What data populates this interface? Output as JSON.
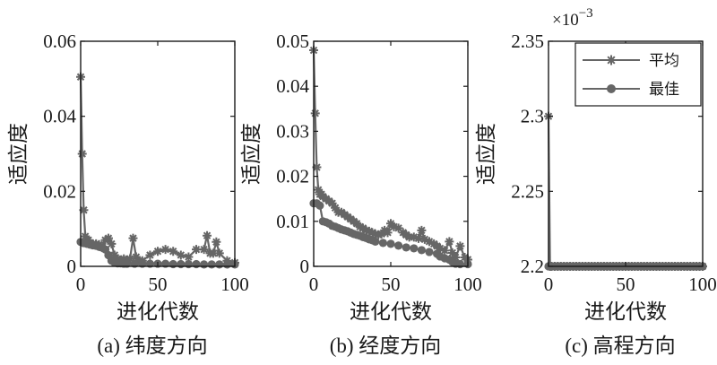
{
  "colors": {
    "axis": "#1a1a1a",
    "series": "#666666",
    "background": "#ffffff"
  },
  "chart_data": [
    {
      "type": "line",
      "caption": "(a) 纬度方向",
      "xlabel": "进化代数",
      "ylabel": "适应度",
      "xlim": [
        0,
        100
      ],
      "ylim": [
        0,
        0.06
      ],
      "xticks": [
        0,
        50,
        100
      ],
      "yticks": [
        0,
        0.02,
        0.04,
        0.06
      ],
      "ytick_labels": [
        "0",
        "0.02",
        "0.04",
        "0.06"
      ],
      "series": [
        {
          "name": "平均",
          "marker": "asterisk",
          "x": [
            0,
            1,
            2,
            3,
            4,
            5,
            6,
            8,
            10,
            12,
            14,
            16,
            18,
            20,
            22,
            24,
            26,
            28,
            30,
            32,
            34,
            36,
            38,
            40,
            45,
            50,
            55,
            60,
            65,
            70,
            75,
            80,
            82,
            84,
            86,
            88,
            90,
            95,
            100
          ],
          "y": [
            0.0505,
            0.03,
            0.015,
            0.008,
            0.007,
            0.007,
            0.006,
            0.006,
            0.006,
            0.0058,
            0.005,
            0.007,
            0.0075,
            0.006,
            0.003,
            0.002,
            0.0015,
            0.002,
            0.0015,
            0.002,
            0.0075,
            0.0025,
            0.0015,
            0.0015,
            0.003,
            0.004,
            0.0045,
            0.004,
            0.003,
            0.0025,
            0.0045,
            0.0045,
            0.0082,
            0.0035,
            0.0035,
            0.0065,
            0.0035,
            0.0015,
            0.001
          ]
        },
        {
          "name": "最佳",
          "marker": "dot",
          "x": [
            0,
            2,
            4,
            6,
            8,
            10,
            12,
            14,
            16,
            18,
            20,
            22,
            24,
            26,
            28,
            30,
            35,
            40,
            45,
            50,
            55,
            60,
            65,
            70,
            75,
            80,
            85,
            90,
            95,
            100
          ],
          "y": [
            0.0065,
            0.0062,
            0.006,
            0.0058,
            0.0056,
            0.0055,
            0.0052,
            0.005,
            0.0045,
            0.003,
            0.0015,
            0.001,
            0.0008,
            0.0008,
            0.0007,
            0.0007,
            0.0007,
            0.0007,
            0.0007,
            0.0007,
            0.0007,
            0.0006,
            0.0006,
            0.0006,
            0.0006,
            0.0005,
            0.0005,
            0.0005,
            0.0005,
            0.0005
          ]
        }
      ]
    },
    {
      "type": "line",
      "caption": "(b) 经度方向",
      "xlabel": "进化代数",
      "ylabel": "适应度",
      "xlim": [
        0,
        100
      ],
      "ylim": [
        0,
        0.05
      ],
      "xticks": [
        0,
        50,
        100
      ],
      "yticks": [
        0,
        0.01,
        0.02,
        0.03,
        0.04,
        0.05
      ],
      "ytick_labels": [
        "0",
        "0.01",
        "0.02",
        "0.03",
        "0.04",
        "0.05"
      ],
      "series": [
        {
          "name": "平均",
          "marker": "asterisk",
          "x": [
            0,
            1,
            2,
            3,
            4,
            5,
            6,
            8,
            10,
            12,
            14,
            16,
            18,
            20,
            22,
            24,
            26,
            28,
            30,
            32,
            34,
            36,
            38,
            40,
            42,
            44,
            46,
            48,
            50,
            52,
            55,
            58,
            60,
            62,
            65,
            68,
            70,
            72,
            75,
            78,
            80,
            82,
            85,
            88,
            90,
            92,
            95,
            98,
            100
          ],
          "y": [
            0.048,
            0.034,
            0.022,
            0.017,
            0.016,
            0.016,
            0.0155,
            0.015,
            0.0145,
            0.014,
            0.013,
            0.012,
            0.012,
            0.0115,
            0.011,
            0.0105,
            0.01,
            0.0095,
            0.0088,
            0.0085,
            0.008,
            0.0078,
            0.0075,
            0.0072,
            0.007,
            0.0072,
            0.008,
            0.0075,
            0.0095,
            0.0088,
            0.0085,
            0.0075,
            0.007,
            0.0065,
            0.0065,
            0.0062,
            0.008,
            0.006,
            0.0055,
            0.005,
            0.0045,
            0.004,
            0.0035,
            0.0055,
            0.003,
            0.002,
            0.0045,
            0.002,
            0.0015
          ]
        },
        {
          "name": "最佳",
          "marker": "dot",
          "x": [
            0,
            2,
            4,
            6,
            8,
            10,
            12,
            14,
            16,
            18,
            20,
            22,
            24,
            26,
            28,
            30,
            32,
            34,
            36,
            38,
            40,
            45,
            50,
            55,
            60,
            65,
            70,
            75,
            80,
            82,
            85,
            88,
            90,
            92,
            95,
            100
          ],
          "y": [
            0.014,
            0.014,
            0.0135,
            0.01,
            0.0098,
            0.0095,
            0.009,
            0.0088,
            0.0085,
            0.0082,
            0.008,
            0.0078,
            0.0075,
            0.0072,
            0.007,
            0.0068,
            0.0065,
            0.0063,
            0.006,
            0.0058,
            0.0055,
            0.0052,
            0.005,
            0.0046,
            0.0042,
            0.004,
            0.0036,
            0.0032,
            0.0028,
            0.0022,
            0.0018,
            0.0015,
            0.001,
            0.0006,
            0.0005,
            0.0005
          ]
        }
      ]
    },
    {
      "type": "line",
      "caption": "(c) 高程方向",
      "xlabel": "进化代数",
      "ylabel": "适应度",
      "xlim": [
        0,
        100
      ],
      "ylim": [
        0.0022,
        0.00235
      ],
      "exponent_label": "×10",
      "exponent_power": "−3",
      "xticks": [
        0,
        50,
        100
      ],
      "yticks": [
        0.0022,
        0.00225,
        0.0023,
        0.00235
      ],
      "ytick_labels": [
        "2.2",
        "2.25",
        "2.3",
        "2.35"
      ],
      "legend": {
        "position": "top-right",
        "entries": [
          "平均",
          "最佳"
        ]
      },
      "series": [
        {
          "name": "平均",
          "marker": "asterisk",
          "x": [
            0,
            1,
            2,
            4,
            6,
            8,
            10,
            12,
            14,
            16,
            18,
            20,
            22,
            24,
            26,
            28,
            30,
            32,
            34,
            36,
            38,
            40,
            42,
            44,
            46,
            48,
            50,
            52,
            54,
            56,
            58,
            60,
            62,
            64,
            66,
            68,
            70,
            72,
            74,
            76,
            78,
            80,
            82,
            84,
            86,
            88,
            90,
            92,
            94,
            96,
            98,
            100
          ],
          "y": [
            0.0023,
            0.0022,
            0.0022,
            0.0022,
            0.0022,
            0.0022,
            0.0022,
            0.0022,
            0.0022,
            0.0022,
            0.0022,
            0.0022,
            0.0022,
            0.0022,
            0.0022,
            0.0022,
            0.0022,
            0.0022,
            0.0022,
            0.0022,
            0.0022,
            0.0022,
            0.0022,
            0.0022,
            0.0022,
            0.0022,
            0.0022,
            0.0022,
            0.0022,
            0.0022,
            0.0022,
            0.0022,
            0.0022,
            0.0022,
            0.0022,
            0.0022,
            0.0022,
            0.0022,
            0.0022,
            0.0022,
            0.0022,
            0.0022,
            0.0022,
            0.0022,
            0.0022,
            0.0022,
            0.0022,
            0.0022,
            0.0022,
            0.0022,
            0.0022,
            0.0022
          ]
        },
        {
          "name": "最佳",
          "marker": "dot",
          "x": [
            0,
            2,
            4,
            6,
            8,
            10,
            12,
            14,
            16,
            18,
            20,
            22,
            24,
            26,
            28,
            30,
            32,
            34,
            36,
            38,
            40,
            42,
            44,
            46,
            48,
            50,
            52,
            54,
            56,
            58,
            60,
            62,
            64,
            66,
            68,
            70,
            72,
            74,
            76,
            78,
            80,
            82,
            84,
            86,
            88,
            90,
            92,
            94,
            96,
            98,
            100
          ],
          "y": [
            0.0022,
            0.0022,
            0.0022,
            0.0022,
            0.0022,
            0.0022,
            0.0022,
            0.0022,
            0.0022,
            0.0022,
            0.0022,
            0.0022,
            0.0022,
            0.0022,
            0.0022,
            0.0022,
            0.0022,
            0.0022,
            0.0022,
            0.0022,
            0.0022,
            0.0022,
            0.0022,
            0.0022,
            0.0022,
            0.0022,
            0.0022,
            0.0022,
            0.0022,
            0.0022,
            0.0022,
            0.0022,
            0.0022,
            0.0022,
            0.0022,
            0.0022,
            0.0022,
            0.0022,
            0.0022,
            0.0022,
            0.0022,
            0.0022,
            0.0022,
            0.0022,
            0.0022,
            0.0022,
            0.0022,
            0.0022,
            0.0022,
            0.0022,
            0.0022
          ]
        }
      ]
    }
  ]
}
